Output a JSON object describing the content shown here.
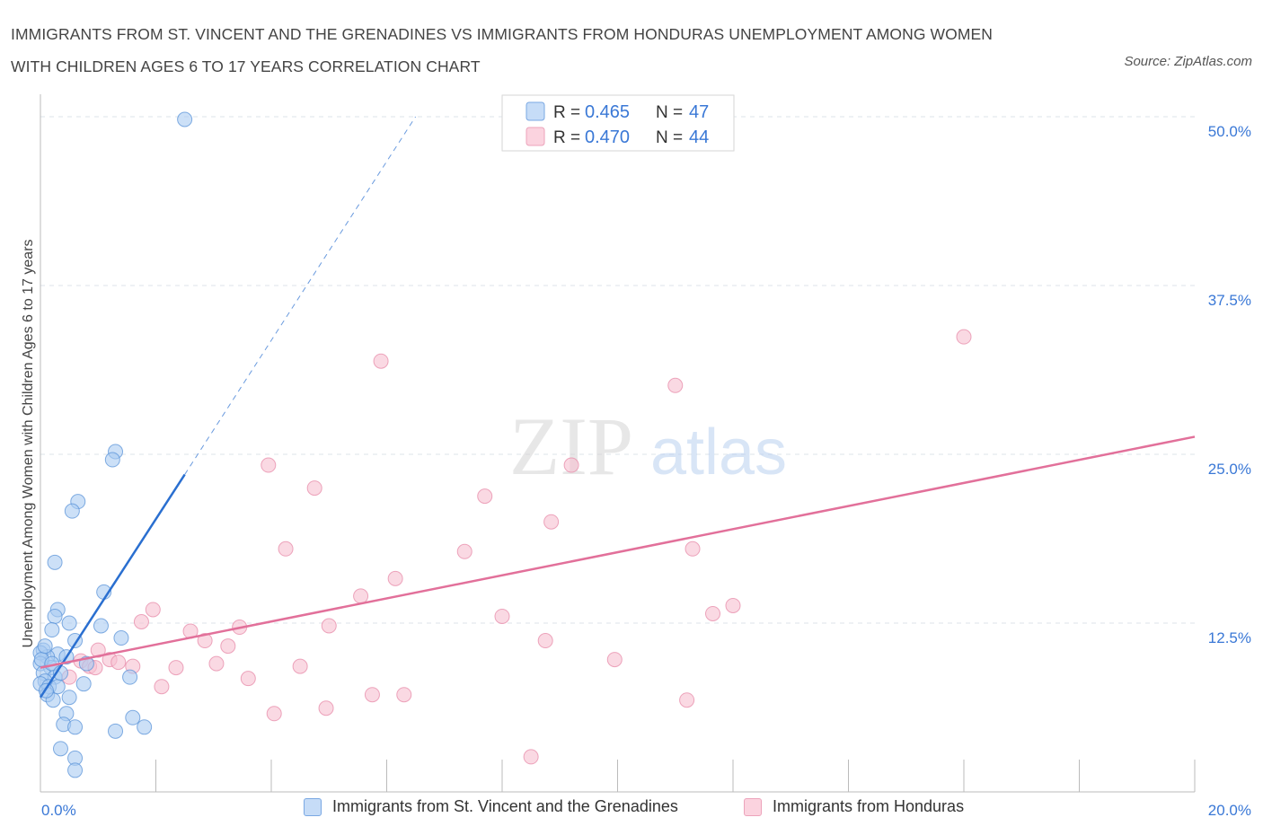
{
  "chart_data": {
    "type": "scatter",
    "title_line1": "IMMIGRANTS FROM ST. VINCENT AND THE GRENADINES VS IMMIGRANTS FROM HONDURAS UNEMPLOYMENT AMONG WOMEN",
    "title_line2": "WITH CHILDREN AGES 6 TO 17 YEARS CORRELATION CHART",
    "source": "Source: ZipAtlas.com",
    "ylabel": "Unemployment Among Women with Children Ages 6 to 17 years",
    "xlim": [
      0,
      20
    ],
    "ylim": [
      0,
      50
    ],
    "x_tick_labels": [
      "0.0%",
      "20.0%"
    ],
    "y_ticks": [
      12.5,
      25.0,
      37.5,
      50.0
    ],
    "y_tick_labels": [
      "12.5%",
      "25.0%",
      "37.5%",
      "50.0%"
    ],
    "watermark_zip": "ZIP",
    "watermark_atlas": "atlas",
    "legend_top": [
      {
        "r_label": "R = ",
        "r_value": "0.465",
        "n_label": "N = ",
        "n_value": "47"
      },
      {
        "r_label": "R = ",
        "r_value": "0.470",
        "n_label": "N = ",
        "n_value": "44"
      }
    ],
    "colors": {
      "blue_fill": "#aaccf2",
      "blue_stroke": "#5a93d8",
      "blue_line": "#2a6fd0",
      "pink_fill": "#f6bfd0",
      "pink_stroke": "#e78aa8",
      "pink_line": "#e2709a",
      "value_blue": "#3a78d6"
    },
    "series": [
      {
        "name": "Immigrants from St. Vincent and the Grenadines",
        "trend": {
          "x0": 0.0,
          "y0": 7.0,
          "x1": 2.5,
          "y1": 23.5,
          "dash_x1": 6.5,
          "dash_y1": 50.0
        },
        "points": [
          [
            2.5,
            49.8
          ],
          [
            1.3,
            25.2
          ],
          [
            1.25,
            24.6
          ],
          [
            0.65,
            21.5
          ],
          [
            0.55,
            20.8
          ],
          [
            0.25,
            17.0
          ],
          [
            1.1,
            14.8
          ],
          [
            0.3,
            13.5
          ],
          [
            0.25,
            13.0
          ],
          [
            0.5,
            12.5
          ],
          [
            1.05,
            12.3
          ],
          [
            0.2,
            12.0
          ],
          [
            0.6,
            11.2
          ],
          [
            1.4,
            11.4
          ],
          [
            0.05,
            10.5
          ],
          [
            0.3,
            10.2
          ],
          [
            0.12,
            10.0
          ],
          [
            0.45,
            10.0
          ],
          [
            0.0,
            10.3
          ],
          [
            0.8,
            9.5
          ],
          [
            0.0,
            9.5
          ],
          [
            0.18,
            9.2
          ],
          [
            0.05,
            8.8
          ],
          [
            0.25,
            8.5
          ],
          [
            1.55,
            8.5
          ],
          [
            0.08,
            8.2
          ],
          [
            0.0,
            8.0
          ],
          [
            0.15,
            7.8
          ],
          [
            0.3,
            7.8
          ],
          [
            0.75,
            8.0
          ],
          [
            0.12,
            7.2
          ],
          [
            0.22,
            6.8
          ],
          [
            0.5,
            7.0
          ],
          [
            0.45,
            5.8
          ],
          [
            1.6,
            5.5
          ],
          [
            0.4,
            5.0
          ],
          [
            0.6,
            4.8
          ],
          [
            1.8,
            4.8
          ],
          [
            1.3,
            4.5
          ],
          [
            0.35,
            3.2
          ],
          [
            0.6,
            2.5
          ],
          [
            0.6,
            1.6
          ],
          [
            0.02,
            9.8
          ],
          [
            0.08,
            10.8
          ],
          [
            0.2,
            9.5
          ],
          [
            0.35,
            8.8
          ],
          [
            0.1,
            7.5
          ]
        ]
      },
      {
        "name": "Immigrants from Honduras",
        "trend": {
          "x0": 0.0,
          "y0": 9.2,
          "x1": 20.0,
          "y1": 26.3
        },
        "points": [
          [
            16.0,
            33.7
          ],
          [
            5.9,
            31.9
          ],
          [
            11.0,
            30.1
          ],
          [
            3.95,
            24.2
          ],
          [
            9.2,
            24.2
          ],
          [
            4.75,
            22.5
          ],
          [
            7.7,
            21.9
          ],
          [
            8.85,
            20.0
          ],
          [
            4.25,
            18.0
          ],
          [
            7.35,
            17.8
          ],
          [
            11.3,
            18.0
          ],
          [
            6.15,
            15.8
          ],
          [
            5.55,
            14.5
          ],
          [
            12.0,
            13.8
          ],
          [
            1.95,
            13.5
          ],
          [
            11.65,
            13.2
          ],
          [
            8.0,
            13.0
          ],
          [
            1.75,
            12.6
          ],
          [
            5.0,
            12.3
          ],
          [
            3.45,
            12.2
          ],
          [
            2.6,
            11.9
          ],
          [
            2.85,
            11.2
          ],
          [
            8.75,
            11.2
          ],
          [
            3.25,
            10.8
          ],
          [
            1.0,
            10.5
          ],
          [
            1.2,
            9.8
          ],
          [
            9.95,
            9.8
          ],
          [
            0.7,
            9.7
          ],
          [
            1.35,
            9.6
          ],
          [
            1.6,
            9.3
          ],
          [
            3.05,
            9.5
          ],
          [
            4.5,
            9.3
          ],
          [
            0.85,
            9.3
          ],
          [
            0.95,
            9.2
          ],
          [
            2.35,
            9.2
          ],
          [
            0.5,
            8.5
          ],
          [
            3.6,
            8.4
          ],
          [
            2.1,
            7.8
          ],
          [
            5.75,
            7.2
          ],
          [
            6.3,
            7.2
          ],
          [
            11.2,
            6.8
          ],
          [
            4.05,
            5.8
          ],
          [
            4.95,
            6.2
          ],
          [
            8.5,
            2.6
          ]
        ]
      }
    ]
  }
}
